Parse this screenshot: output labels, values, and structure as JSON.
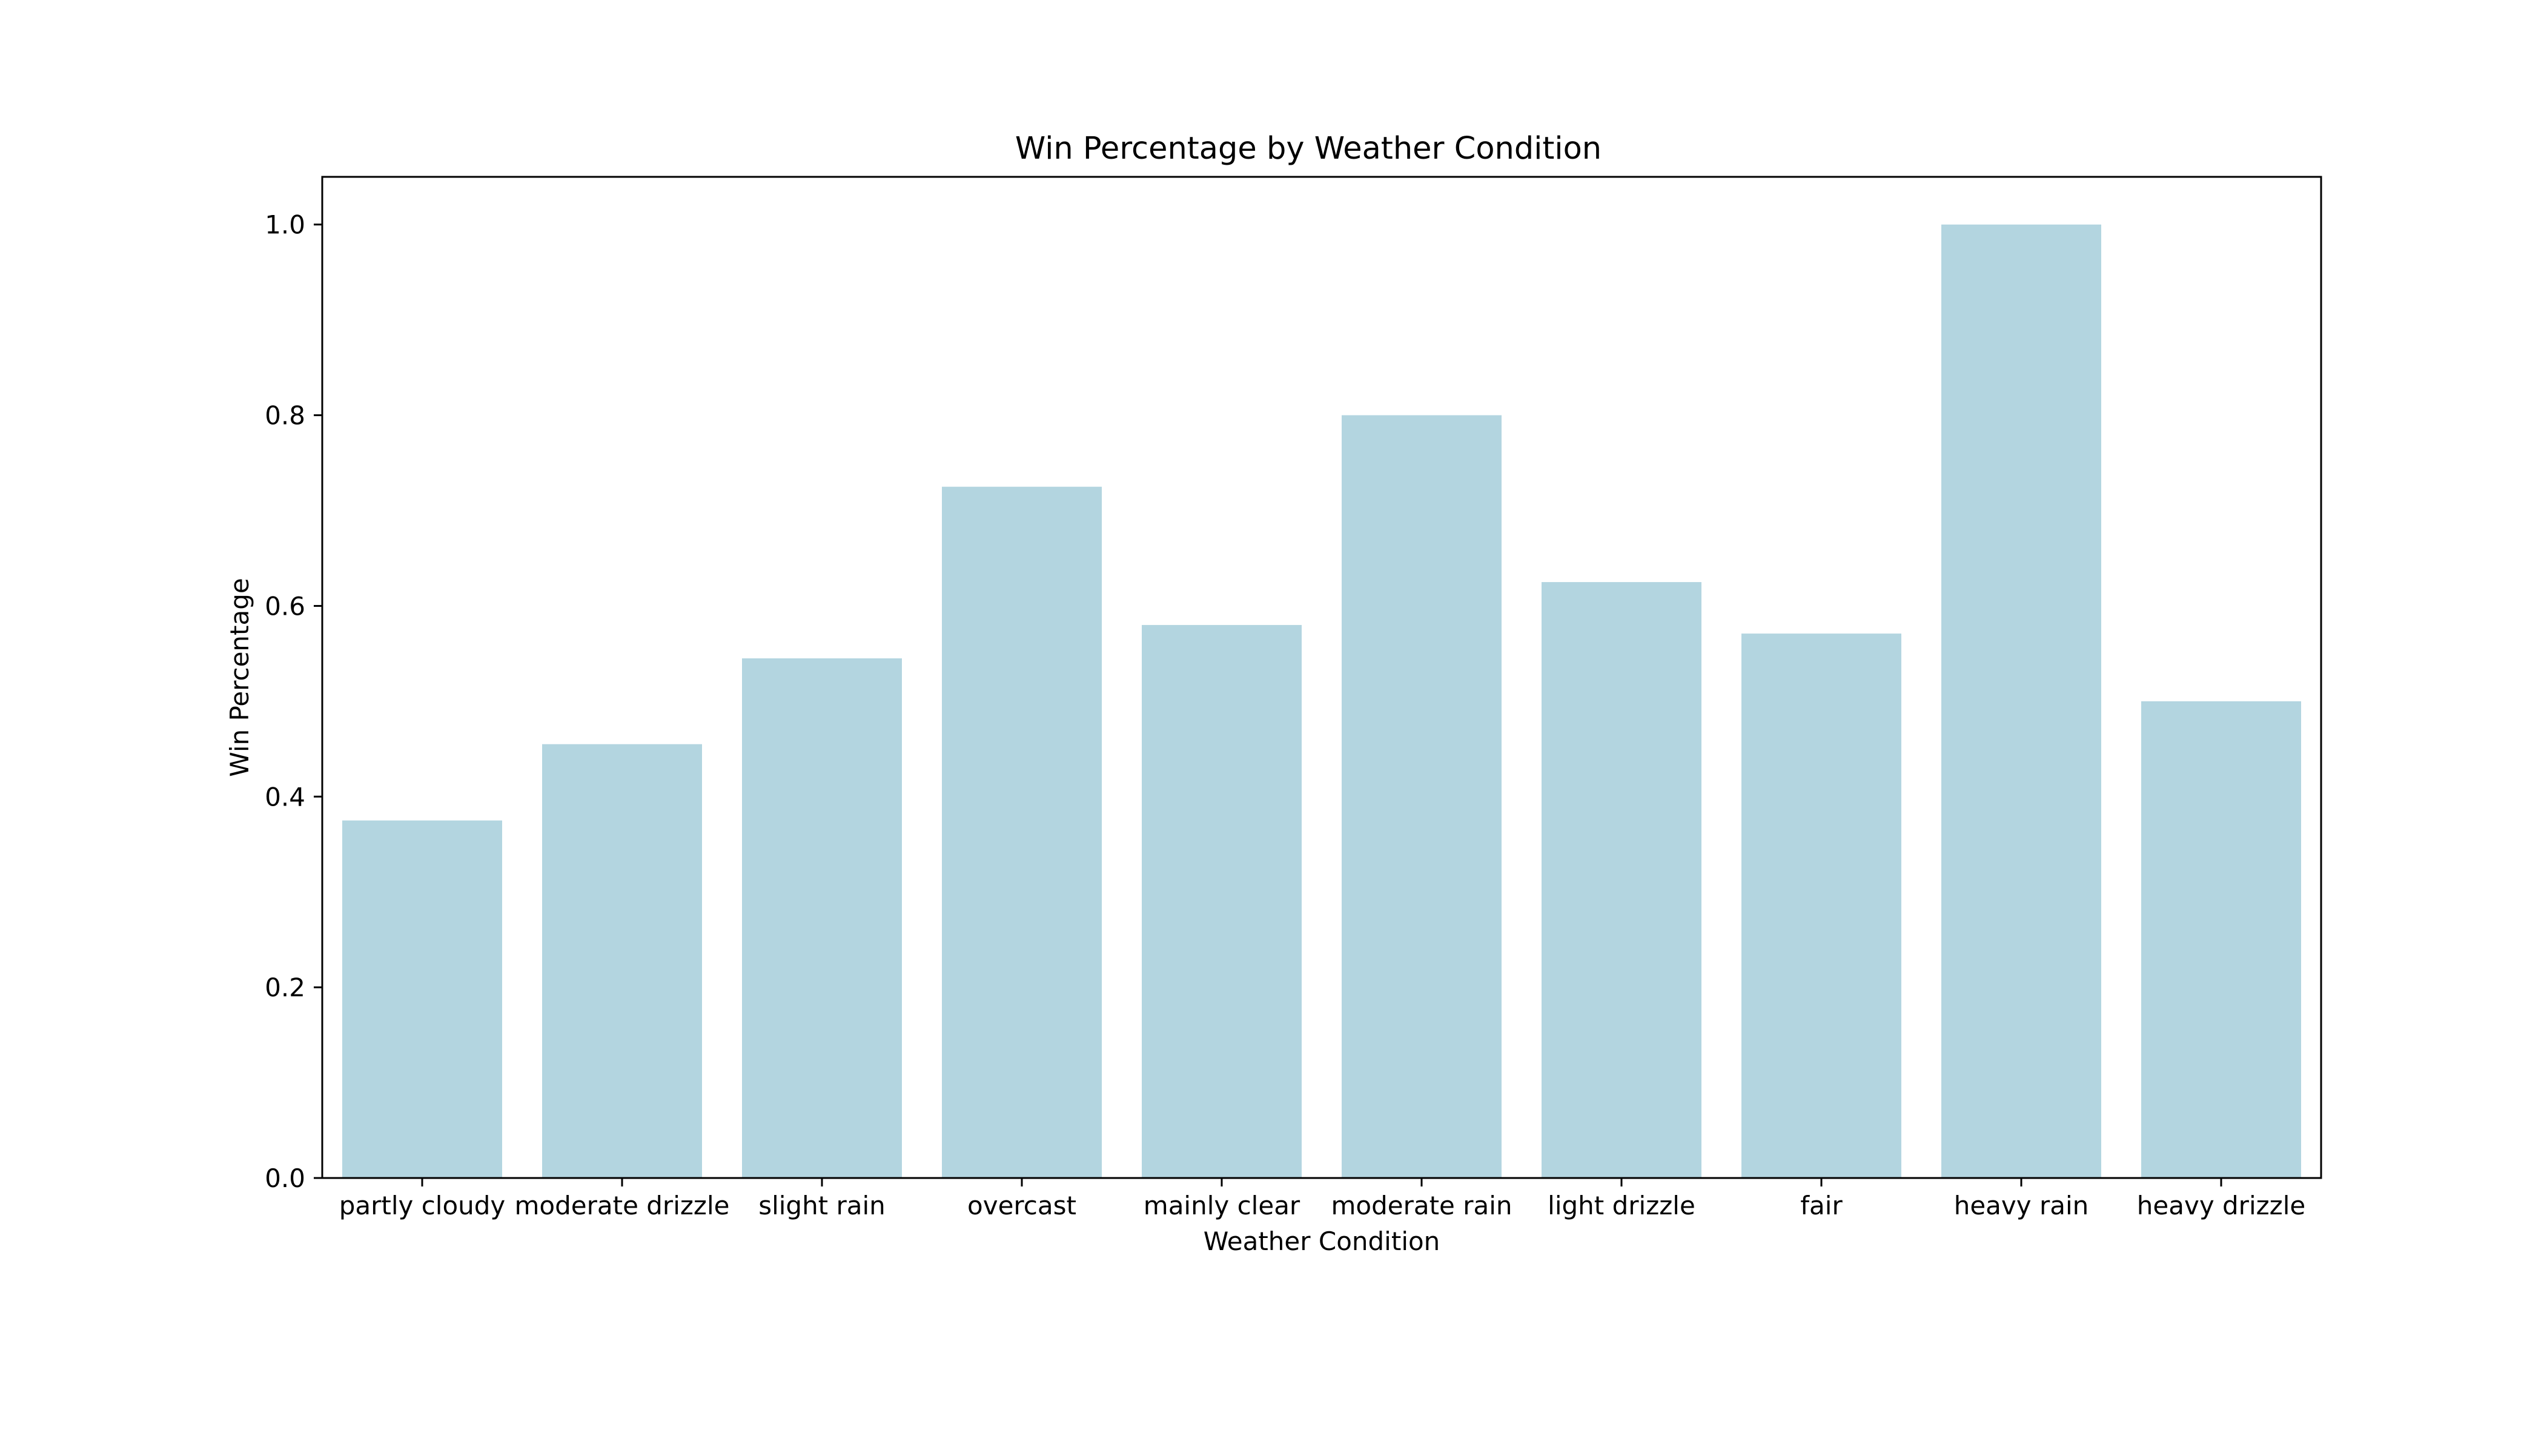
{
  "chart_data": {
    "type": "bar",
    "title": "Win Percentage by Weather Condition",
    "xlabel": "Weather Condition",
    "ylabel": "Win Percentage",
    "categories": [
      "partly cloudy",
      "moderate drizzle",
      "slight rain",
      "overcast",
      "mainly clear",
      "moderate rain",
      "light drizzle",
      "fair",
      "heavy rain",
      "heavy drizzle"
    ],
    "values": [
      0.375,
      0.455,
      0.545,
      0.725,
      0.58,
      0.8,
      0.625,
      0.571,
      1.0,
      0.5
    ],
    "ylim": [
      0,
      1.05
    ],
    "yticks": [
      0.0,
      0.2,
      0.4,
      0.6,
      0.8,
      1.0
    ],
    "ytick_labels": [
      "0.0",
      "0.2",
      "0.4",
      "0.6",
      "0.8",
      "1.0"
    ],
    "grid": false,
    "legend": "none",
    "bar_color": "#b3d5e0"
  }
}
